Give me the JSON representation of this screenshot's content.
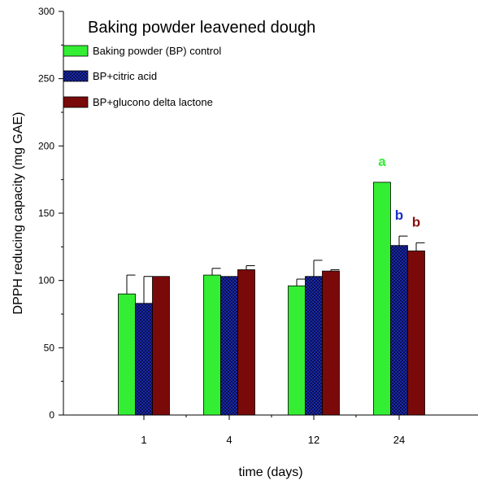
{
  "chart_data": {
    "type": "bar",
    "title": "Baking powder leavened dough",
    "xlabel": "time (days)",
    "ylabel": "DPPH reducing capacity (mg GAE)",
    "ylim": [
      0,
      300
    ],
    "yticks": [
      "0",
      "50",
      "100",
      "150",
      "200",
      "250",
      "300"
    ],
    "categories": [
      "1",
      "4",
      "12",
      "24"
    ],
    "series": [
      {
        "name": "Baking powder (BP) control",
        "color": "#33ee33",
        "pattern": "solid",
        "values": [
          90,
          104,
          96,
          173
        ],
        "errors": [
          14,
          5,
          5,
          0
        ],
        "letters": [
          "",
          "",
          "",
          "a"
        ],
        "letter_color": "#33ee33"
      },
      {
        "name": "BP+citric acid",
        "color": "#1a2aa8",
        "pattern": "checker",
        "values": [
          83,
          103,
          103,
          126
        ],
        "errors": [
          20,
          0,
          12,
          7
        ],
        "letters": [
          "",
          "",
          "",
          "b"
        ],
        "letter_color": "#1a2fcc"
      },
      {
        "name": "BP+glucono delta lactone",
        "color": "#7a0a0a",
        "pattern": "solid",
        "values": [
          103,
          108,
          107,
          122
        ],
        "errors": [
          0,
          3,
          1,
          6
        ],
        "letters": [
          "",
          "",
          "",
          "b"
        ],
        "letter_color": "#8b1010"
      }
    ],
    "legend": "top-left"
  }
}
